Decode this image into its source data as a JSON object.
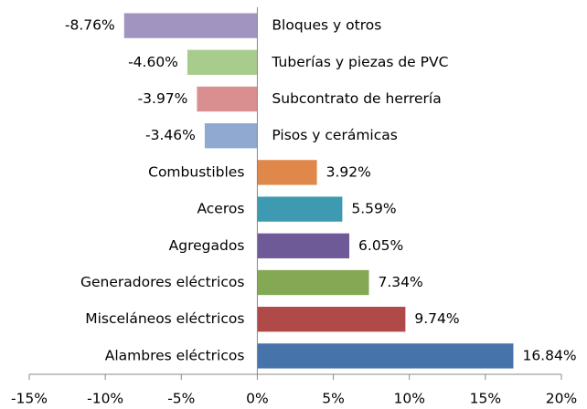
{
  "chart_data": {
    "type": "bar",
    "orientation": "horizontal",
    "categories": [
      "Bloques y otros",
      "Tuberías y piezas de PVC",
      "Subcontrato de herrería",
      "Pisos y cerámicas",
      "Combustibles",
      "Aceros",
      "Agregados",
      "Generadores eléctricos",
      "Misceláneos eléctricos",
      "Alambres eléctricos"
    ],
    "values": [
      -8.76,
      -4.6,
      -3.97,
      -3.46,
      3.92,
      5.59,
      6.05,
      7.34,
      9.74,
      16.84
    ],
    "value_labels": [
      "-8.76%",
      "-4.60%",
      "-3.97%",
      "-3.46%",
      "3.92%",
      "5.59%",
      "6.05%",
      "7.34%",
      "9.74%",
      "16.84%"
    ],
    "colors": [
      "#a194c0",
      "#a8cc8c",
      "#d98f8f",
      "#8fa9d1",
      "#e0884a",
      "#3d9ab0",
      "#6e5a96",
      "#84a854",
      "#b04a48",
      "#4673aa"
    ],
    "xlim": [
      -15,
      20
    ],
    "xticks": [
      {
        "value": -15,
        "label": "-15%"
      },
      {
        "value": -10,
        "label": "-10%"
      },
      {
        "value": -5,
        "label": "-5%"
      },
      {
        "value": 0,
        "label": "0%"
      },
      {
        "value": 5,
        "label": "5%"
      },
      {
        "value": 10,
        "label": "10%"
      },
      {
        "value": 15,
        "label": "15%"
      },
      {
        "value": 20,
        "label": "20%"
      }
    ],
    "grid": false
  }
}
